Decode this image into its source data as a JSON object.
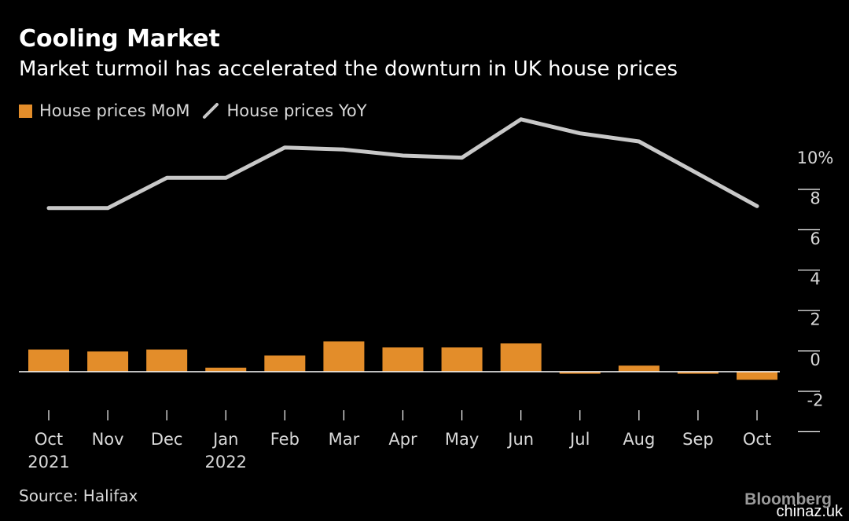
{
  "header": {
    "title": "Cooling Market",
    "subtitle": "Market turmoil has accelerated the downturn in UK house prices"
  },
  "legend": {
    "bar_label": "House prices MoM",
    "line_label": "House prices YoY"
  },
  "footer": {
    "source": "Source: Halifax",
    "brand": "Bloomberg",
    "watermark": "chinaz.uk"
  },
  "colors": {
    "background": "#000000",
    "bar": "#e38d2a",
    "line": "#c8c8c8",
    "axis": "#ffffff",
    "text": "#d9d9d9"
  },
  "chart_data": {
    "type": "bar+line",
    "categories": [
      "Oct",
      "Nov",
      "Dec",
      "Jan",
      "Feb",
      "Mar",
      "Apr",
      "May",
      "Jun",
      "Jul",
      "Aug",
      "Sep",
      "Oct"
    ],
    "category_sublabels": [
      "2021",
      "",
      "",
      "2022",
      "",
      "",
      "",
      "",
      "",
      "",
      "",
      "",
      ""
    ],
    "series": [
      {
        "name": "House prices MoM",
        "type": "bar",
        "values": [
          1.1,
          1.0,
          1.1,
          0.2,
          0.8,
          1.5,
          1.2,
          1.2,
          1.4,
          -0.1,
          0.3,
          -0.1,
          -0.4
        ]
      },
      {
        "name": "House prices YoY",
        "type": "line",
        "values": [
          8.1,
          8.1,
          9.6,
          9.6,
          11.1,
          11.0,
          10.7,
          10.6,
          12.5,
          11.8,
          11.4,
          9.8,
          8.2
        ]
      }
    ],
    "y_ticks": [
      "10%",
      "8",
      "6",
      "4",
      "2",
      "0",
      "-2"
    ],
    "y_tick_values": [
      10,
      8,
      6,
      4,
      2,
      0,
      -2
    ],
    "ylim": [
      -2.5,
      12.5
    ],
    "y_axis_side": "right",
    "grid": false
  }
}
